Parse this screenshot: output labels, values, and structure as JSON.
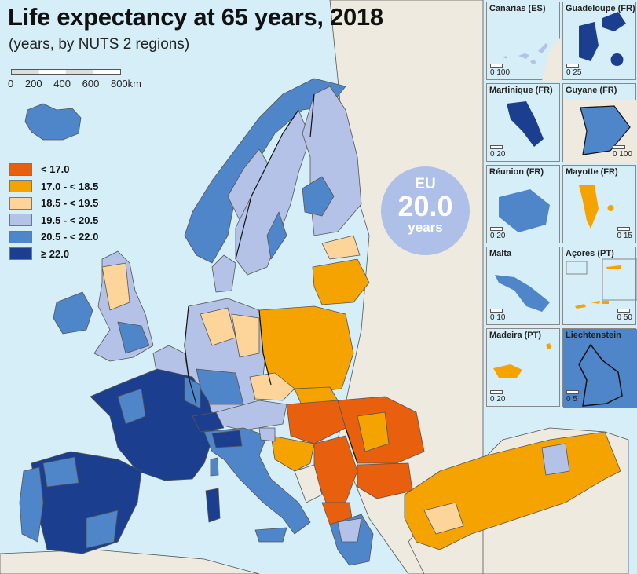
{
  "title": "Life expectancy at 65 years, 2018",
  "subtitle": "(years, by NUTS 2 regions)",
  "scale_bar": {
    "ticks": [
      "0",
      "200",
      "400",
      "600",
      "800km"
    ]
  },
  "legend": [
    {
      "label": "< 17.0",
      "color": "#e8600e"
    },
    {
      "label": "17.0 - < 18.5",
      "color": "#f5a300"
    },
    {
      "label": "18.5 - < 19.5",
      "color": "#fdd49a"
    },
    {
      "label": "19.5 - < 20.5",
      "color": "#b3c2e6"
    },
    {
      "label": "20.5 - < 22.0",
      "color": "#4f86c9"
    },
    {
      "label": "≥ 22.0",
      "color": "#1b3f8e"
    }
  ],
  "eu_badge": {
    "line1": "EU",
    "value": "20.0",
    "unit": "years"
  },
  "colors": {
    "sea": "#d5eef8",
    "non_eu_land": "#efeadf"
  },
  "insets": [
    {
      "name": "Canarias (ES)",
      "scale": "0  100",
      "class": "19.5 - < 20.5"
    },
    {
      "name": "Guadeloupe (FR)",
      "scale": "0   25",
      "class": "≥ 22.0"
    },
    {
      "name": "Martinique (FR)",
      "scale": "0    20",
      "class": "≥ 22.0"
    },
    {
      "name": "Guyane (FR)",
      "scale": "0  100",
      "class": "20.5 - < 22.0"
    },
    {
      "name": "Réunion (FR)",
      "scale": "0    20",
      "class": "20.5 - < 22.0"
    },
    {
      "name": "Mayotte (FR)",
      "scale": "0    15",
      "class": "17.0 - < 18.5"
    },
    {
      "name": "Malta",
      "scale": "0    10",
      "class": "20.5 - < 22.0"
    },
    {
      "name": "Açores (PT)",
      "scale": "0  50",
      "class": "17.0 - < 18.5"
    },
    {
      "name": "Madeira (PT)",
      "scale": "0   20",
      "class": "17.0 - < 18.5"
    },
    {
      "name": "Liechtenstein",
      "scale": "0  5",
      "class": "20.5 - < 22.0"
    }
  ]
}
